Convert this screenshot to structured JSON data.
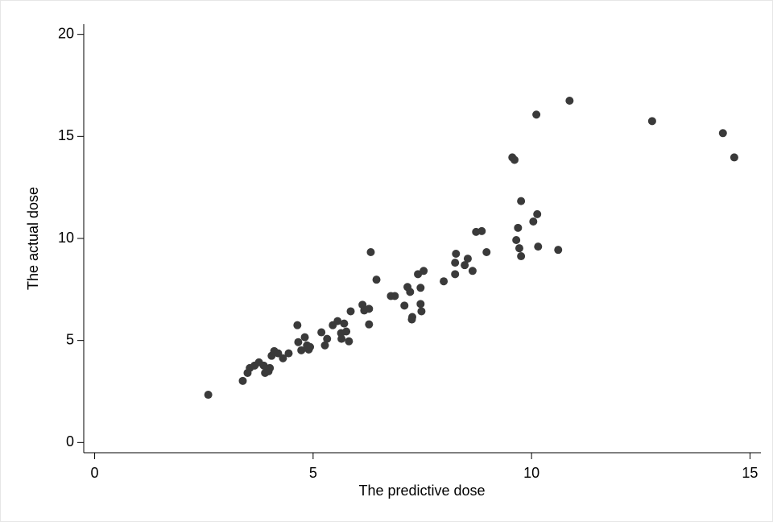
{
  "chart_data": {
    "type": "scatter",
    "x_label": "The predictive dose",
    "y_label": "The actual dose",
    "xlim": [
      -0.25,
      15.25
    ],
    "ylim": [
      -0.5,
      20.5
    ],
    "xticks": [
      0,
      5,
      10,
      15
    ],
    "yticks": [
      0,
      5,
      10,
      15,
      20
    ],
    "grid": false,
    "color": "#3a3a3a",
    "x": [
      2.6,
      3.39,
      3.5,
      3.55,
      3.66,
      3.76,
      3.87,
      3.9,
      3.98,
      4.01,
      4.05,
      4.11,
      4.2,
      4.31,
      4.44,
      4.64,
      4.66,
      4.73,
      4.81,
      4.86,
      4.9,
      4.93,
      5.19,
      5.27,
      5.32,
      5.45,
      5.56,
      5.64,
      5.65,
      5.71,
      5.76,
      5.82,
      5.86,
      6.13,
      6.17,
      6.28,
      6.28,
      6.32,
      6.45,
      6.78,
      6.87,
      7.09,
      7.16,
      7.22,
      7.27,
      7.26,
      7.4,
      7.46,
      7.46,
      7.48,
      7.53,
      7.99,
      8.25,
      8.25,
      8.27,
      8.47,
      8.54,
      8.65,
      8.73,
      8.86,
      8.97,
      9.56,
      9.61,
      9.65,
      9.69,
      9.72,
      9.76,
      9.76,
      10.04,
      10.11,
      10.13,
      10.15,
      10.61,
      10.87,
      12.76,
      14.38,
      14.64
    ],
    "values": [
      2.34,
      3.02,
      3.41,
      3.65,
      3.77,
      3.93,
      3.77,
      3.41,
      3.49,
      3.65,
      4.25,
      4.48,
      4.37,
      4.13,
      4.37,
      5.75,
      4.92,
      4.52,
      5.16,
      4.76,
      4.56,
      4.68,
      5.4,
      4.76,
      5.08,
      5.75,
      5.95,
      5.36,
      5.08,
      5.83,
      5.44,
      4.96,
      6.43,
      6.75,
      6.47,
      6.55,
      5.79,
      9.33,
      7.98,
      7.18,
      7.18,
      6.71,
      7.62,
      7.38,
      6.15,
      6.03,
      8.25,
      6.79,
      7.58,
      6.43,
      8.41,
      7.9,
      8.25,
      8.81,
      9.25,
      8.69,
      9.01,
      8.41,
      10.32,
      10.36,
      9.33,
      13.97,
      13.85,
      9.92,
      10.52,
      9.52,
      9.13,
      11.83,
      10.83,
      16.07,
      11.19,
      9.6,
      9.44,
      16.75,
      15.75,
      15.16,
      13.97
    ]
  }
}
